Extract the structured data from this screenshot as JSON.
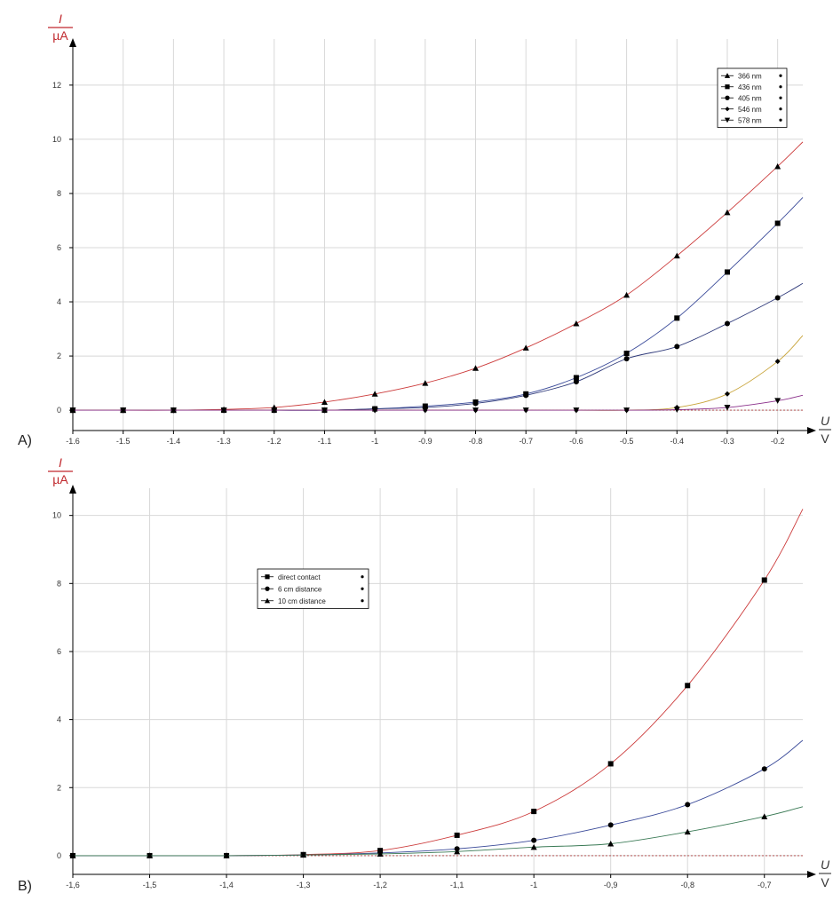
{
  "panel_labels": [
    "A)",
    "B)"
  ],
  "chart_data": [
    {
      "type": "line",
      "panel": "A)",
      "ylabel_top": "I",
      "ylabel_bottom": "µA",
      "xlabel_top": "U",
      "xlabel_bottom": "V",
      "xlim": [
        -1.6,
        -0.15
      ],
      "ylim": [
        -0.75,
        13.7
      ],
      "xticks": [
        -1.6,
        -1.5,
        -1.4,
        -1.3,
        -1.2,
        -1.1,
        -1.0,
        -0.9,
        -0.8,
        -0.7,
        -0.6,
        -0.5,
        -0.4,
        -0.3,
        -0.2
      ],
      "xtick_labels": [
        "-1,6",
        "-1,5",
        "-1,4",
        "-1,3",
        "-1,2",
        "-1,1",
        "-1",
        "-0,9",
        "-0,8",
        "-0,7",
        "-0,6",
        "-0,5",
        "-0,4",
        "-0,3",
        "-0,2"
      ],
      "yticks": [
        0,
        2,
        4,
        6,
        8,
        10,
        12
      ],
      "ytick_labels": [
        "0",
        "2",
        "4",
        "6",
        "8",
        "10",
        "12"
      ],
      "grid": true,
      "legend": "top-right",
      "series": [
        {
          "name": "366 nm",
          "marker": "triangle-up",
          "color": "#cc3b3b",
          "x": [
            -1.6,
            -1.5,
            -1.4,
            -1.3,
            -1.2,
            -1.1,
            -1.0,
            -0.9,
            -0.8,
            -0.7,
            -0.6,
            -0.5,
            -0.4,
            -0.3,
            -0.2
          ],
          "y": [
            0,
            0,
            0,
            0.03,
            0.1,
            0.3,
            0.6,
            1.0,
            1.55,
            2.3,
            3.2,
            4.25,
            5.7,
            7.3,
            9.0
          ]
        },
        {
          "name": "436 nm",
          "marker": "square",
          "color": "#3a4a99",
          "x": [
            -1.6,
            -1.5,
            -1.4,
            -1.3,
            -1.2,
            -1.1,
            -1.0,
            -0.9,
            -0.8,
            -0.7,
            -0.6,
            -0.5,
            -0.4,
            -0.3,
            -0.2
          ],
          "y": [
            0,
            0,
            0,
            0,
            0,
            0,
            0.05,
            0.15,
            0.3,
            0.6,
            1.2,
            2.1,
            3.4,
            5.1,
            6.9
          ]
        },
        {
          "name": "405 nm",
          "marker": "circle",
          "color": "#2f3a7a",
          "x": [
            -1.6,
            -1.5,
            -1.4,
            -1.3,
            -1.2,
            -1.1,
            -1.0,
            -0.9,
            -0.8,
            -0.7,
            -0.6,
            -0.5,
            -0.4,
            -0.3,
            -0.2
          ],
          "y": [
            0,
            0,
            0,
            0,
            0,
            0,
            0.05,
            0.1,
            0.25,
            0.55,
            1.05,
            1.9,
            2.35,
            3.2,
            4.15
          ]
        },
        {
          "name": "546 nm",
          "marker": "diamond",
          "color": "#c8a43a",
          "x": [
            -1.6,
            -1.5,
            -1.4,
            -1.3,
            -1.2,
            -1.1,
            -1.0,
            -0.9,
            -0.8,
            -0.7,
            -0.6,
            -0.5,
            -0.4,
            -0.3,
            -0.2
          ],
          "y": [
            0,
            0,
            0,
            0,
            0,
            0,
            0,
            0,
            0,
            0,
            0,
            0,
            0.1,
            0.6,
            1.8
          ]
        },
        {
          "name": "578 nm",
          "marker": "triangle-down",
          "color": "#8a2f8a",
          "x": [
            -1.6,
            -1.5,
            -1.4,
            -1.3,
            -1.2,
            -1.1,
            -1.0,
            -0.9,
            -0.8,
            -0.7,
            -0.6,
            -0.5,
            -0.4,
            -0.3,
            -0.2
          ],
          "y": [
            0,
            0,
            0,
            0,
            0,
            0,
            0,
            0,
            0,
            0,
            0,
            0,
            0.02,
            0.1,
            0.35
          ]
        }
      ]
    },
    {
      "type": "line",
      "panel": "B)",
      "ylabel_top": "I",
      "ylabel_bottom": "µA",
      "xlabel_top": "U",
      "xlabel_bottom": "V",
      "xlim": [
        -1.6,
        -0.65
      ],
      "ylim": [
        -0.55,
        10.8
      ],
      "xticks": [
        -1.6,
        -1.5,
        -1.4,
        -1.3,
        -1.2,
        -1.1,
        -1.0,
        -0.9,
        -0.8,
        -0.7
      ],
      "xtick_labels": [
        "-1,6",
        "-1,5",
        "-1,4",
        "-1,3",
        "-1,2",
        "-1,1",
        "-1",
        "-0,9",
        "-0,8",
        "-0,7"
      ],
      "yticks": [
        0,
        2,
        4,
        6,
        8,
        10
      ],
      "ytick_labels": [
        "0",
        "2",
        "4",
        "6",
        "8",
        "10"
      ],
      "grid": true,
      "legend": "top-left",
      "series": [
        {
          "name": "direct contact",
          "marker": "square",
          "color": "#cc3b3b",
          "x": [
            -1.6,
            -1.5,
            -1.4,
            -1.3,
            -1.2,
            -1.1,
            -1.0,
            -0.9,
            -0.8,
            -0.7
          ],
          "y": [
            0,
            0,
            0,
            0.03,
            0.15,
            0.6,
            1.3,
            2.7,
            5.0,
            8.1
          ]
        },
        {
          "name": "6 cm distance",
          "marker": "circle",
          "color": "#3a4a99",
          "x": [
            -1.6,
            -1.5,
            -1.4,
            -1.3,
            -1.2,
            -1.1,
            -1.0,
            -0.9,
            -0.8,
            -0.7
          ],
          "y": [
            0,
            0,
            0,
            0.02,
            0.08,
            0.2,
            0.45,
            0.9,
            1.5,
            2.55
          ]
        },
        {
          "name": "10 cm distance",
          "marker": "triangle-up",
          "color": "#3a7a55",
          "x": [
            -1.6,
            -1.5,
            -1.4,
            -1.3,
            -1.2,
            -1.1,
            -1.0,
            -0.9,
            -0.8,
            -0.7
          ],
          "y": [
            0,
            0,
            0,
            0.02,
            0.05,
            0.12,
            0.25,
            0.35,
            0.7,
            1.15
          ]
        }
      ]
    }
  ]
}
